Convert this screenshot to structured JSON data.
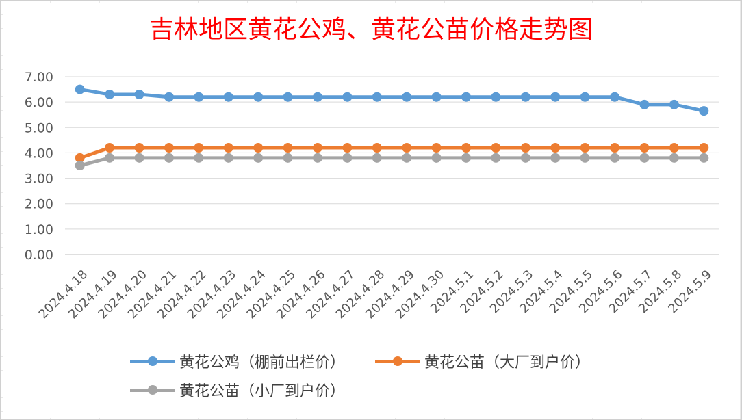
{
  "chart_data": {
    "type": "line",
    "title": "吉林地区黄花公鸡、黄花公苗价格走势图",
    "xlabel": "",
    "ylabel": "",
    "categories": [
      "2024.4.18",
      "2024.4.19",
      "2024.4.20",
      "2024.4.21",
      "2024.4.22",
      "2024.4.23",
      "2024.4.24",
      "2024.4.25",
      "2024.4.26",
      "2024.4.27",
      "2024.4.28",
      "2024.4.29",
      "2024.4.30",
      "2024.5.1",
      "2024.5.2",
      "2024.5.3",
      "2024.5.4",
      "2024.5.5",
      "2024.5.6",
      "2024.5.7",
      "2024.5.8",
      "2024.5.9"
    ],
    "ylim": [
      0,
      7
    ],
    "yticks": [
      "0.00",
      "1.00",
      "2.00",
      "3.00",
      "4.00",
      "5.00",
      "6.00",
      "7.00"
    ],
    "grid": "horizontal",
    "legend_position": "bottom",
    "series": [
      {
        "name": "黄花公鸡（棚前出栏价）",
        "color": "#5b9bd5",
        "values": [
          6.5,
          6.3,
          6.3,
          6.2,
          6.2,
          6.2,
          6.2,
          6.2,
          6.2,
          6.2,
          6.2,
          6.2,
          6.2,
          6.2,
          6.2,
          6.2,
          6.2,
          6.2,
          6.2,
          5.9,
          5.9,
          5.65
        ]
      },
      {
        "name": "黄花公苗（大厂到户价）",
        "color": "#ed7d31",
        "values": [
          3.8,
          4.2,
          4.2,
          4.2,
          4.2,
          4.2,
          4.2,
          4.2,
          4.2,
          4.2,
          4.2,
          4.2,
          4.2,
          4.2,
          4.2,
          4.2,
          4.2,
          4.2,
          4.2,
          4.2,
          4.2,
          4.2
        ]
      },
      {
        "name": "黄花公苗（小厂到户价）",
        "color": "#a5a5a5",
        "values": [
          3.5,
          3.8,
          3.8,
          3.8,
          3.8,
          3.8,
          3.8,
          3.8,
          3.8,
          3.8,
          3.8,
          3.8,
          3.8,
          3.8,
          3.8,
          3.8,
          3.8,
          3.8,
          3.8,
          3.8,
          3.8,
          3.8
        ]
      }
    ]
  }
}
